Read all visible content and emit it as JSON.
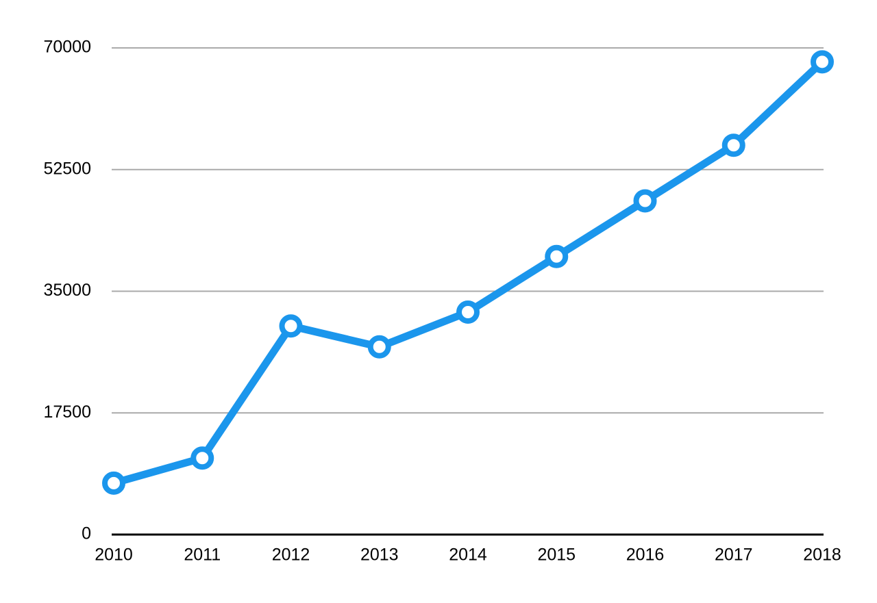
{
  "chart_data": {
    "type": "line",
    "categories": [
      "2010",
      "2011",
      "2012",
      "2013",
      "2014",
      "2015",
      "2016",
      "2017",
      "2018"
    ],
    "values": [
      7400,
      11000,
      30000,
      27000,
      32000,
      40000,
      48000,
      56000,
      68000
    ],
    "color": "#1b96ec",
    "ylim": [
      0,
      70000
    ],
    "yticks": [
      0,
      17500,
      35000,
      52500,
      70000
    ],
    "grid": true
  }
}
